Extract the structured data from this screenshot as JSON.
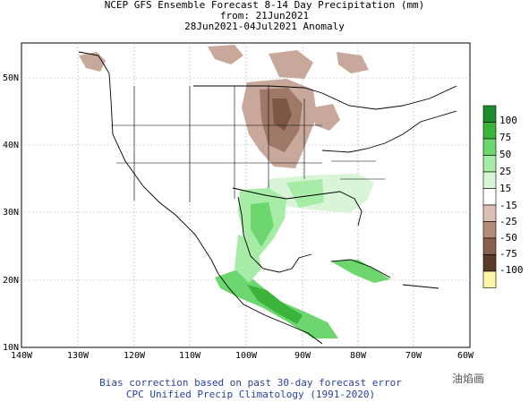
{
  "title": {
    "line1": "NCEP GFS Ensemble Forecast 8-14 Day Precipitation (mm)",
    "line2": "from: 21Jun2021",
    "line3": "28Jun2021-04Jul2021 Anomaly"
  },
  "axes": {
    "lat_labels": [
      "50N",
      "40N",
      "30N",
      "20N",
      "10N"
    ],
    "lon_labels": [
      "140W",
      "130W",
      "120W",
      "110W",
      "100W",
      "90W",
      "80W",
      "70W",
      "60W"
    ]
  },
  "colorbar": {
    "labels": [
      "100",
      "75",
      "50",
      "25",
      "15",
      "-15",
      "-25",
      "-50",
      "-75",
      "-100"
    ],
    "colors": [
      "#1e8c2e",
      "#3cb43c",
      "#6ed66e",
      "#a6eba6",
      "#d8f5d8",
      "#ffffff",
      "#dcc0b4",
      "#b48c7c",
      "#8a5e4c",
      "#5a3a2a",
      "#fcf5a8"
    ]
  },
  "footer": {
    "line1": "Bias correction based on past 30-day forecast error",
    "line2": "CPC Unified Precip Climatology (1991-2020)"
  },
  "watermark": "油焰画"
}
